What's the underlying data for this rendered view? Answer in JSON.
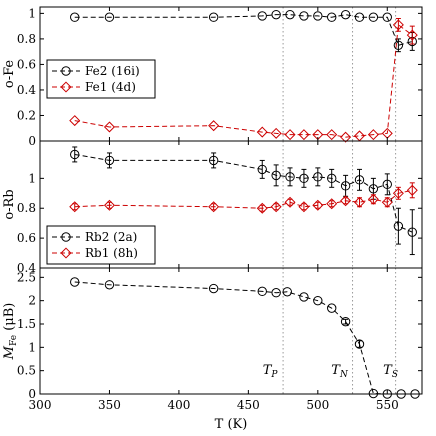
{
  "chart_data": [
    {
      "type": "line",
      "ylabel": "o-Fe",
      "xlim": [
        300,
        575
      ],
      "ylim": [
        0,
        1.05
      ],
      "yticks": [
        0,
        0.2,
        0.4,
        0.6,
        0.8,
        1
      ],
      "ytick_labels": [
        "0",
        "0.2",
        "0.4",
        "0.6",
        "0.8",
        "1"
      ],
      "legend_position": "middle-left",
      "series": [
        {
          "name": "Fe2 (16i)",
          "color": "#000000",
          "marker": "circle",
          "x": [
            325,
            350,
            425,
            460,
            470,
            480,
            490,
            500,
            510,
            520,
            530,
            540,
            550,
            558,
            568
          ],
          "y": [
            0.97,
            0.97,
            0.97,
            0.98,
            0.99,
            0.99,
            0.98,
            0.98,
            0.97,
            0.99,
            0.97,
            0.97,
            0.97,
            0.75,
            0.78
          ],
          "err": [
            0,
            0,
            0,
            0,
            0,
            0,
            0,
            0,
            0,
            0,
            0,
            0,
            0,
            0.05,
            0.07
          ]
        },
        {
          "name": "Fe1 (4d)",
          "color": "#cc0000",
          "marker": "diamond",
          "x": [
            325,
            350,
            425,
            460,
            470,
            480,
            490,
            500,
            510,
            520,
            530,
            540,
            550,
            558,
            568
          ],
          "y": [
            0.16,
            0.11,
            0.12,
            0.07,
            0.06,
            0.05,
            0.05,
            0.05,
            0.05,
            0.03,
            0.04,
            0.05,
            0.06,
            0.91,
            0.83
          ],
          "err": [
            0,
            0,
            0,
            0,
            0,
            0,
            0,
            0,
            0,
            0,
            0,
            0,
            0,
            0.05,
            0.07
          ]
        }
      ]
    },
    {
      "type": "line",
      "ylabel": "o-Rb",
      "xlim": [
        300,
        575
      ],
      "ylim": [
        0.4,
        1.25
      ],
      "yticks": [
        0.4,
        0.6,
        0.8,
        1
      ],
      "ytick_labels": [
        "0.4",
        "0.6",
        "0.8",
        "1"
      ],
      "legend_position": "bottom-left",
      "series": [
        {
          "name": "Rb2 (2a)",
          "color": "#000000",
          "marker": "circle",
          "x": [
            325,
            350,
            425,
            460,
            470,
            480,
            490,
            500,
            510,
            520,
            530,
            540,
            550,
            558,
            568
          ],
          "y": [
            1.16,
            1.12,
            1.12,
            1.06,
            1.02,
            1.01,
            1.0,
            1.01,
            1.0,
            0.95,
            0.99,
            0.93,
            0.96,
            0.68,
            0.64
          ],
          "err": [
            0.05,
            0.05,
            0.05,
            0.06,
            0.07,
            0.06,
            0.06,
            0.06,
            0.06,
            0.07,
            0.07,
            0.07,
            0.07,
            0.12,
            0.15
          ]
        },
        {
          "name": "Rb1 (8h)",
          "color": "#cc0000",
          "marker": "diamond",
          "x": [
            325,
            350,
            425,
            460,
            470,
            480,
            490,
            500,
            510,
            520,
            530,
            540,
            550,
            558,
            568
          ],
          "y": [
            0.81,
            0.82,
            0.81,
            0.8,
            0.81,
            0.84,
            0.81,
            0.82,
            0.83,
            0.85,
            0.84,
            0.86,
            0.84,
            0.9,
            0.92
          ],
          "err": [
            0.02,
            0.02,
            0.02,
            0.02,
            0.02,
            0.02,
            0.02,
            0.02,
            0.02,
            0.02,
            0.03,
            0.03,
            0.03,
            0.04,
            0.05
          ]
        }
      ]
    },
    {
      "type": "line",
      "ylabel": "M",
      "ylabel_sub": "Fe",
      "ylabel_unit": " (μB)",
      "xlabel": "T (K)",
      "xlim": [
        300,
        575
      ],
      "ylim": [
        0,
        2.7
      ],
      "xticks": [
        300,
        350,
        400,
        450,
        500,
        550
      ],
      "xtick_labels": [
        "300",
        "350",
        "400",
        "450",
        "500",
        "550"
      ],
      "yticks": [
        0,
        0.5,
        1,
        1.5,
        2,
        2.5
      ],
      "ytick_labels": [
        "0",
        "0.5",
        "1",
        "1.5",
        "2",
        "2.5"
      ],
      "series": [
        {
          "color": "#000000",
          "marker": "circle",
          "x": [
            325,
            350,
            425,
            460,
            470,
            478,
            490,
            500,
            510,
            520,
            530,
            540,
            550,
            560,
            570
          ],
          "y": [
            2.4,
            2.34,
            2.26,
            2.2,
            2.17,
            2.19,
            2.08,
            2.0,
            1.84,
            1.55,
            1.07,
            0.01,
            0.0,
            0.0,
            0.0
          ],
          "err": [
            0,
            0,
            0,
            0,
            0,
            0,
            0,
            0,
            0,
            0.05,
            0.07,
            0,
            0,
            0,
            0
          ]
        }
      ],
      "vlines": [
        {
          "x": 475,
          "label": "T",
          "sub": "P"
        },
        {
          "x": 525,
          "label": "T",
          "sub": "N"
        },
        {
          "x": 556,
          "label": "T",
          "sub": "S"
        }
      ]
    }
  ]
}
